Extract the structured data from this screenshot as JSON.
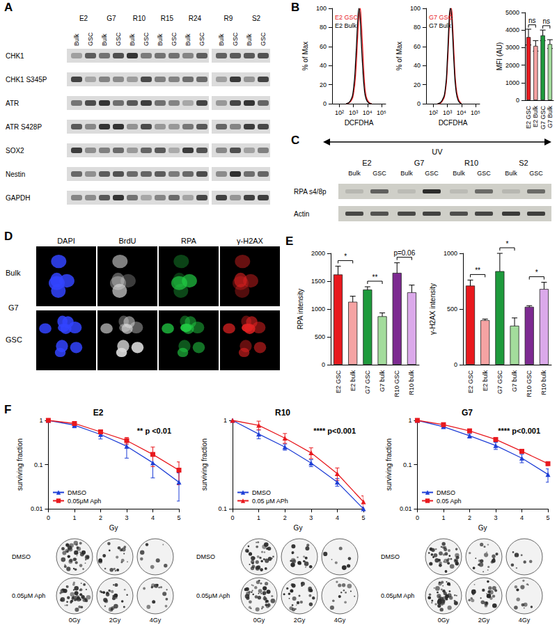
{
  "panel_letters": [
    "A",
    "B",
    "C",
    "D",
    "E",
    "F"
  ],
  "panels": {
    "A": {
      "columns": [
        "E2",
        "G7",
        "R10",
        "R15",
        "R24",
        "R9",
        "S2"
      ],
      "subcolumns": [
        "Bulk",
        "GSC"
      ],
      "rows": [
        "CHK1",
        "CHK1 S345P",
        "ATR",
        "ATR S428P",
        "SOX2",
        "Nestin",
        "GAPDH"
      ]
    },
    "C": {
      "treatment": "UV",
      "columns": [
        "E2",
        "G7",
        "R10",
        "S2"
      ],
      "subcolumns": [
        "Bulk",
        "GSC"
      ],
      "rows": [
        "RPA s4/8p",
        "Actin"
      ]
    },
    "D": {
      "channels": [
        "DAPI",
        "BrdU",
        "RPA",
        "γ-H2AX"
      ],
      "row_labels": [
        "Bulk",
        "GSC"
      ],
      "cell_line": "G7"
    },
    "F": {
      "dish_rows": [
        "DMSO",
        "0.05μM Aph"
      ],
      "dish_columns": [
        "0Gy",
        "2Gy",
        "4Gy"
      ]
    }
  },
  "chart_data": [
    {
      "type": "line",
      "xlabel": "DCFDHA",
      "ylabel": "% of Max",
      "log": "x",
      "grid": false,
      "legend": "upper left",
      "xlim": [
        30,
        200000
      ],
      "xticks": [
        {
          "value": 100,
          "label": "10²"
        },
        {
          "value": 1000,
          "label": "10³"
        },
        {
          "value": 10000,
          "label": "10⁴"
        },
        {
          "value": 100000,
          "label": "10⁵"
        }
      ],
      "ylim": [
        0,
        100
      ],
      "yticks": [
        0,
        20,
        40,
        60,
        80,
        100
      ],
      "x": [
        300,
        600,
        1000,
        1500,
        2000,
        2500,
        3000,
        3500,
        4500,
        6000,
        8000,
        12000,
        20000
      ],
      "series": [
        {
          "name": "E2 GSC",
          "color": "#e8191e",
          "values": [
            0,
            2,
            10,
            35,
            70,
            92,
            100,
            90,
            60,
            25,
            8,
            2,
            0
          ]
        },
        {
          "name": "E2 Bulk",
          "color": "#000000",
          "values": [
            0,
            3,
            15,
            50,
            85,
            100,
            90,
            70,
            40,
            15,
            5,
            1,
            0
          ]
        }
      ]
    },
    {
      "type": "line",
      "xlabel": "DCFDHA",
      "ylabel": "% of Max",
      "log": "x",
      "grid": false,
      "legend": "upper left",
      "xlim": [
        30,
        200000
      ],
      "xticks": [
        {
          "value": 100,
          "label": "10²"
        },
        {
          "value": 1000,
          "label": "10³"
        },
        {
          "value": 10000,
          "label": "10⁴"
        },
        {
          "value": 100000,
          "label": "10⁵"
        }
      ],
      "ylim": [
        0,
        100
      ],
      "yticks": [
        0,
        20,
        40,
        60,
        80,
        100
      ],
      "x": [
        200,
        400,
        700,
        1000,
        1300,
        1600,
        1900,
        2300,
        3000,
        4000,
        6000,
        10000
      ],
      "series": [
        {
          "name": "G7 GSC",
          "color": "#e8191e",
          "values": [
            0,
            2,
            12,
            40,
            75,
            95,
            100,
            85,
            50,
            20,
            5,
            0
          ]
        },
        {
          "name": "G7 Bulk",
          "color": "#000000",
          "values": [
            0,
            3,
            15,
            48,
            85,
            100,
            95,
            75,
            40,
            15,
            3,
            0
          ]
        }
      ]
    },
    {
      "type": "bar",
      "ylabel": "MFI (AU)",
      "grid": false,
      "categories": [
        "E2 GSC",
        "E2 Bulk",
        "G7 GSC",
        "G7 Bulk"
      ],
      "values": [
        3600,
        3100,
        3700,
        3200
      ],
      "errors": [
        450,
        300,
        300,
        250
      ],
      "colors": [
        "#e8191e",
        "#f5a3a3",
        "#1e9a3c",
        "#a3dc9c"
      ],
      "ylim": [
        0,
        5000
      ],
      "yticks": [
        0,
        1000,
        2000,
        3000,
        4000,
        5000
      ],
      "annotations": [
        {
          "pair": [
            "E2 GSC",
            "E2 Bulk"
          ],
          "text": "ns"
        },
        {
          "pair": [
            "G7 GSC",
            "G7 Bulk"
          ],
          "text": "ns"
        }
      ]
    },
    {
      "type": "bar",
      "ylabel": "RPA intensity",
      "grid": false,
      "categories": [
        "E2 GSC",
        "E2 bulk",
        "G7 GSC",
        "G7 bulk",
        "R10 GSC",
        "R10 bulk"
      ],
      "values": [
        1620,
        1130,
        1350,
        870,
        1650,
        1300
      ],
      "errors": [
        150,
        100,
        50,
        60,
        180,
        130
      ],
      "colors": [
        "#e8191e",
        "#f5a3a3",
        "#1e9a3c",
        "#a3dc9c",
        "#7d2a91",
        "#dba9ea"
      ],
      "ylim": [
        0,
        2000
      ],
      "yticks": [
        0,
        500,
        1000,
        1500,
        2000
      ],
      "annotations": [
        {
          "pair": [
            "E2 GSC",
            "E2 bulk"
          ],
          "text": "*"
        },
        {
          "pair": [
            "G7 GSC",
            "G7 bulk"
          ],
          "text": "**"
        },
        {
          "pair": [
            "R10 GSC",
            "R10 bulk"
          ],
          "text": "p=0.06"
        }
      ]
    },
    {
      "type": "bar",
      "ylabel": "γ-H2AX intensity",
      "grid": false,
      "categories": [
        "E2 GSC",
        "E2 bulk",
        "G7 GSC",
        "G7 bulk",
        "R10 GSC",
        "R10 bulk"
      ],
      "values": [
        710,
        400,
        840,
        350,
        520,
        680
      ],
      "errors": [
        50,
        10,
        160,
        70,
        10,
        60
      ],
      "colors": [
        "#e8191e",
        "#f5a3a3",
        "#1e9a3c",
        "#a3dc9c",
        "#7d2a91",
        "#dba9ea"
      ],
      "ylim": [
        0,
        1000
      ],
      "yticks": [
        0,
        500,
        1000
      ],
      "annotations": [
        {
          "pair": [
            "E2 GSC",
            "E2 bulk"
          ],
          "text": "**"
        },
        {
          "pair": [
            "G7 GSC",
            "G7 bulk"
          ],
          "text": "*"
        },
        {
          "pair": [
            "R10 GSC",
            "R10 bulk"
          ],
          "text": "*"
        }
      ]
    },
    {
      "type": "line",
      "title": "E2",
      "annotation": "** p <0.01",
      "xlabel": "Gy",
      "ylabel": "surviving fraction",
      "log": "y",
      "grid": false,
      "legend": "lower left",
      "x": [
        0,
        1,
        2,
        3,
        4,
        5
      ],
      "xlim": [
        0,
        5
      ],
      "xticks": [
        0,
        1,
        2,
        3,
        4,
        5
      ],
      "ylim": [
        0.01,
        1
      ],
      "yticks": [
        0.01,
        0.1,
        1
      ],
      "series": [
        {
          "name": "DMSO",
          "color": "#1f3fd6",
          "marker": "triangle",
          "values": [
            1,
            0.78,
            0.48,
            0.26,
            0.11,
            0.04
          ],
          "errors": [
            0,
            0.1,
            0.1,
            0.12,
            0.06,
            0.025
          ]
        },
        {
          "name": "0.05μM Aph",
          "color": "#e8191e",
          "marker": "square",
          "values": [
            1,
            0.85,
            0.55,
            0.35,
            0.17,
            0.075
          ],
          "errors": [
            0,
            0.05,
            0.05,
            0.06,
            0.08,
            0.04
          ]
        }
      ]
    },
    {
      "type": "line",
      "title": "R10",
      "annotation": "**** p<0.001",
      "xlabel": "Gy",
      "ylabel": "surviving fraction",
      "log": "y",
      "grid": false,
      "legend": "lower left",
      "x": [
        0,
        1,
        2,
        3,
        4,
        5
      ],
      "xlim": [
        0,
        5
      ],
      "xticks": [
        0,
        1,
        2,
        3,
        4,
        5
      ],
      "ylim": [
        0.1,
        1
      ],
      "yticks": [
        0.1,
        1
      ],
      "series": [
        {
          "name": "DMSO",
          "color": "#1f3fd6",
          "marker": "triangle",
          "values": [
            1,
            0.7,
            0.5,
            0.33,
            0.2,
            0.1
          ],
          "errors": [
            0,
            0.08,
            0.04,
            0.03,
            0.02,
            0.005
          ]
        },
        {
          "name": "0.05 μM APh",
          "color": "#e8191e",
          "marker": "triangle",
          "values": [
            1,
            0.88,
            0.63,
            0.43,
            0.25,
            0.12
          ],
          "errors": [
            0,
            0.1,
            0.08,
            0.06,
            0.04,
            0.02
          ]
        }
      ]
    },
    {
      "type": "line",
      "title": "G7",
      "annotation": "**** p<0.001",
      "xlabel": "Gy",
      "ylabel": "surviving fraction",
      "log": "y",
      "grid": false,
      "legend": "lower left",
      "x": [
        0,
        1,
        2,
        3,
        4,
        5
      ],
      "xlim": [
        0,
        5
      ],
      "xticks": [
        0,
        1,
        2,
        3,
        4,
        5
      ],
      "ylim": [
        0.01,
        1
      ],
      "yticks": [
        0.01,
        0.1,
        1
      ],
      "series": [
        {
          "name": "DMSO",
          "color": "#1f3fd6",
          "marker": "triangle",
          "values": [
            1,
            0.72,
            0.45,
            0.27,
            0.14,
            0.06
          ],
          "errors": [
            0,
            0.05,
            0.05,
            0.05,
            0.03,
            0.02
          ]
        },
        {
          "name": "0.05 Aph",
          "color": "#e8191e",
          "marker": "square",
          "values": [
            1,
            0.8,
            0.58,
            0.37,
            0.2,
            0.105
          ],
          "errors": [
            0,
            0.04,
            0.04,
            0.04,
            0.02,
            0.01
          ]
        }
      ]
    }
  ]
}
